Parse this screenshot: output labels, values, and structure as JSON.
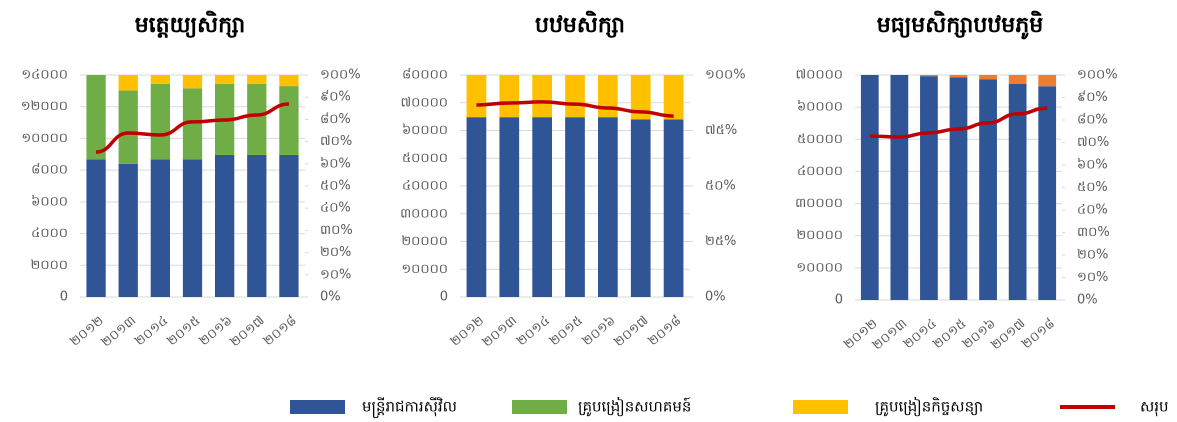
{
  "chart_data": [
    {
      "type": "bar",
      "title": "មត្តេយ្យសិក្សា",
      "categories": [
        "២០១២",
        "២០១៣",
        "២០១៤",
        "២០១៥",
        "២០១៦",
        "២០១៧",
        "២០១៨"
      ],
      "ylim": [
        0,
        14000
      ],
      "yticks": [
        0,
        {
          "value": 2000,
          "label": "២០០០"
        },
        {
          "value": 4000,
          "label": "៤០០០"
        },
        {
          "value": 6000,
          "label": "៦០០០"
        },
        {
          "value": 8000,
          "label": "៨០០០"
        },
        {
          "value": 10000,
          "label": "១០០០០"
        },
        {
          "value": 12000,
          "label": "១២០០០"
        },
        {
          "value": 14000,
          "label": "១៤០០០"
        }
      ],
      "y2lim": [
        0,
        100
      ],
      "y2ticks": [
        {
          "value": 0,
          "label": "0%"
        },
        {
          "value": 10,
          "label": "១០%"
        },
        {
          "value": 20,
          "label": "២០%"
        },
        {
          "value": 30,
          "label": "៣០%"
        },
        {
          "value": 40,
          "label": "៤០%"
        },
        {
          "value": 50,
          "label": "៥០%"
        },
        {
          "value": 60,
          "label": "៦០%"
        },
        {
          "value": 70,
          "label": "៧០%"
        },
        {
          "value": 80,
          "label": "៨០%"
        },
        {
          "value": 90,
          "label": "៩០%"
        },
        {
          "value": 100,
          "label": "១០០%"
        }
      ],
      "series": [
        {
          "name": "មន្ត្រីរាជការស៊ីវិល",
          "color": "#2f5597",
          "axis": "y2",
          "values": [
            62,
            60,
            62,
            62,
            64,
            64,
            64
          ]
        },
        {
          "name": "គ្រូបង្រៀនសហគមន៍",
          "color": "#70ad47",
          "axis": "y2",
          "values": [
            38,
            33,
            34,
            32,
            32,
            32,
            31
          ]
        },
        {
          "name": "គ្រូបង្រៀនកិច្ចសន្យា",
          "color": "#ffc000",
          "axis": "y2",
          "values": [
            0,
            7,
            4,
            6,
            4,
            4,
            5
          ]
        },
        {
          "name": "សរុប",
          "color": "#c00000",
          "type": "line",
          "values": [
            9140,
            10340,
            10220,
            11040,
            11160,
            11480,
            12170
          ]
        }
      ]
    },
    {
      "type": "bar",
      "title": "បឋមសិក្សា",
      "categories": [
        "២០១២",
        "២០១៣",
        "២០១៤",
        "២០១៥",
        "២០១៦",
        "២០១៧",
        "២០១៨"
      ],
      "ylim": [
        0,
        80000
      ],
      "yticks": [
        0,
        {
          "value": 10000,
          "label": "១០០០០"
        },
        {
          "value": 20000,
          "label": "២០០០០"
        },
        {
          "value": 30000,
          "label": "៣០០០០"
        },
        {
          "value": 40000,
          "label": "៤០០០០"
        },
        {
          "value": 50000,
          "label": "៥០០០០"
        },
        {
          "value": 60000,
          "label": "៦០០០០"
        },
        {
          "value": 70000,
          "label": "៧០០០០"
        },
        {
          "value": 80000,
          "label": "៨០០០០"
        }
      ],
      "y2lim": [
        0,
        100
      ],
      "y2ticks": [
        {
          "value": 0,
          "label": "0%"
        },
        {
          "value": 25,
          "label": "២៥%"
        },
        {
          "value": 50,
          "label": "៥០%"
        },
        {
          "value": 75,
          "label": "៧៥%"
        },
        {
          "value": 100,
          "label": "១០០%"
        }
      ],
      "series": [
        {
          "name": "មន្ត្រីរាជការស៊ីវិល",
          "color": "#2f5597",
          "axis": "y2",
          "values": [
            81,
            81,
            81,
            81,
            81,
            80,
            80
          ]
        },
        {
          "name": "គ្រូបង្រៀនកិច្ចសន្យា",
          "color": "#ffc000",
          "axis": "y2",
          "values": [
            19,
            19,
            19,
            19,
            19,
            20,
            20
          ]
        },
        {
          "name": "សរុប",
          "color": "#c00000",
          "type": "line",
          "values": [
            69200,
            69900,
            70300,
            69500,
            68100,
            66700,
            65200
          ]
        }
      ]
    },
    {
      "type": "bar",
      "title": "មធ្យមសិក្សាបឋមភូមិ",
      "categories": [
        "២០១២",
        "២០១៣",
        "២០១៤",
        "២០១៥",
        "២០១៦",
        "២០១៧",
        "២០១៨"
      ],
      "ylim": [
        0,
        70000
      ],
      "yticks": [
        0,
        {
          "value": 10000,
          "label": "១០០០០"
        },
        {
          "value": 20000,
          "label": "២០០០០"
        },
        {
          "value": 30000,
          "label": "៣០០០០"
        },
        {
          "value": 40000,
          "label": "៤០០០០"
        },
        {
          "value": 50000,
          "label": "៥០០០០"
        },
        {
          "value": 60000,
          "label": "៦០០០០"
        },
        {
          "value": 70000,
          "label": "៧០០០០"
        }
      ],
      "y2lim": [
        0,
        100
      ],
      "y2ticks": [
        {
          "value": 0,
          "label": "0%"
        },
        {
          "value": 10,
          "label": "១០%"
        },
        {
          "value": 20,
          "label": "២០%"
        },
        {
          "value": 30,
          "label": "៣០%"
        },
        {
          "value": 40,
          "label": "៤០%"
        },
        {
          "value": 50,
          "label": "៥០%"
        },
        {
          "value": 60,
          "label": "៦០%"
        },
        {
          "value": 70,
          "label": "៧០%"
        },
        {
          "value": 80,
          "label": "៨០%"
        },
        {
          "value": 90,
          "label": "៩០%"
        },
        {
          "value": 100,
          "label": "១០០%"
        }
      ],
      "series": [
        {
          "name": "មន្ត្រីរាជការស៊ីវិល",
          "color": "#2f5597",
          "axis": "y2",
          "values": [
            100,
            100,
            99.5,
            99,
            98,
            96,
            95
          ]
        },
        {
          "name": "គ្រូបង្រៀនកិច្ចសន្យា",
          "color": "#ed7d31",
          "axis": "y2",
          "values": [
            0,
            0,
            0.5,
            1,
            2,
            4,
            5
          ]
        },
        {
          "name": "សរុប",
          "color": "#c00000",
          "type": "line",
          "values": [
            51000,
            50700,
            52000,
            53200,
            55100,
            57900,
            59700
          ]
        }
      ]
    }
  ]
}
